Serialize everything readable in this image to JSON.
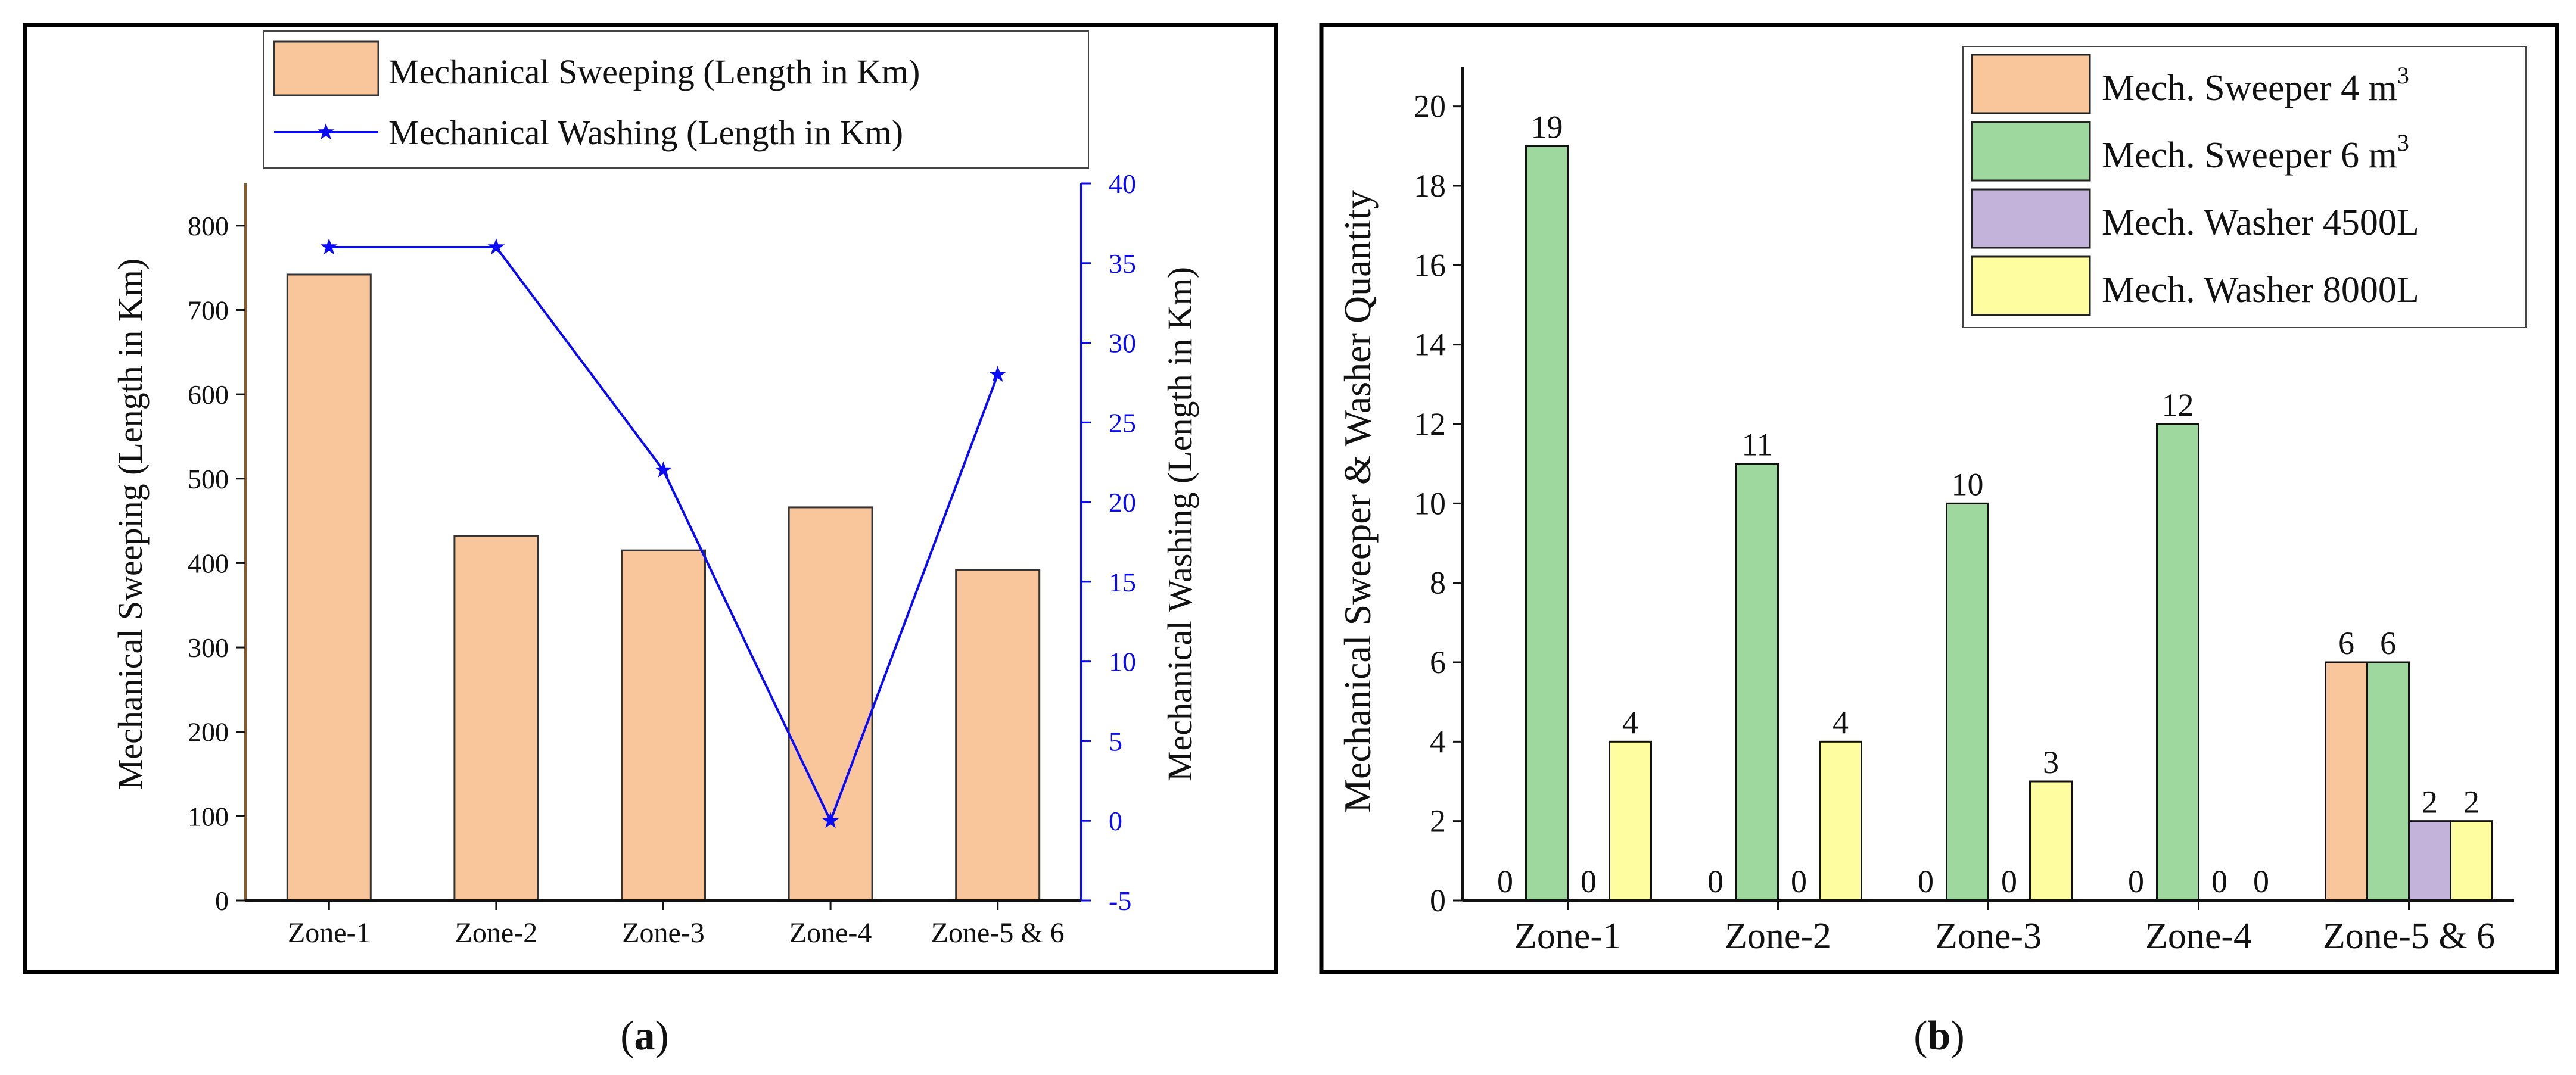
{
  "colors": {
    "sweeping_bar": "#F9C59B",
    "washing_line": "#0A0AF5",
    "sweeper4": "#F9C59B",
    "sweeper6": "#9FD89E",
    "washer4500": "#C3B3DA",
    "washer8000": "#FEFDA0",
    "frame": "#000000"
  },
  "chart_data": [
    {
      "panel": "a",
      "caption_letter": "a",
      "type": "bar",
      "categories": [
        "Zone-1",
        "Zone-2",
        "Zone-3",
        "Zone-4",
        "Zone-5 & 6"
      ],
      "series": [
        {
          "name": "Mechanical Sweeping (Length in Km)",
          "kind": "bar",
          "axis": "left",
          "values": [
            742,
            432,
            415,
            466,
            392
          ]
        },
        {
          "name": "Mechanical Washing (Length in Km)",
          "kind": "line",
          "marker": "star",
          "axis": "right",
          "values": [
            36,
            36,
            22,
            0,
            28
          ]
        }
      ],
      "ylabel": "Mechanical Sweeping (Length in Km)",
      "ylim": [
        0,
        850
      ],
      "yticks": [
        0,
        100,
        200,
        300,
        400,
        500,
        600,
        700,
        800
      ],
      "y2label": "Mechanical Washing (Length in Km)",
      "y2lim": [
        -5,
        40
      ],
      "y2ticks": [
        -5,
        0,
        5,
        10,
        15,
        20,
        25,
        30,
        35,
        40
      ],
      "legend_position": "top-center",
      "grid": false
    },
    {
      "panel": "b",
      "caption_letter": "b",
      "type": "bar",
      "categories": [
        "Zone-1",
        "Zone-2",
        "Zone-3",
        "Zone-4",
        "Zone-5 & 6"
      ],
      "series": [
        {
          "name": "Mech. Sweeper 4 m",
          "superscript": "3",
          "values": [
            0,
            0,
            0,
            0,
            6
          ]
        },
        {
          "name": "Mech. Sweeper 6 m",
          "superscript": "3",
          "values": [
            19,
            11,
            10,
            12,
            6
          ]
        },
        {
          "name": "Mech. Washer 4500L",
          "superscript": "",
          "values": [
            0,
            0,
            0,
            0,
            2
          ]
        },
        {
          "name": "Mech. Washer 8000L",
          "superscript": "",
          "values": [
            4,
            4,
            3,
            0,
            2
          ]
        }
      ],
      "ylabel": "Mechanical Sweeper & Washer Quantity",
      "ylim": [
        0,
        21
      ],
      "yticks": [
        0,
        2,
        4,
        6,
        8,
        10,
        12,
        14,
        16,
        18,
        20
      ],
      "legend_position": "top-right",
      "grid": false,
      "data_labels": true
    }
  ]
}
